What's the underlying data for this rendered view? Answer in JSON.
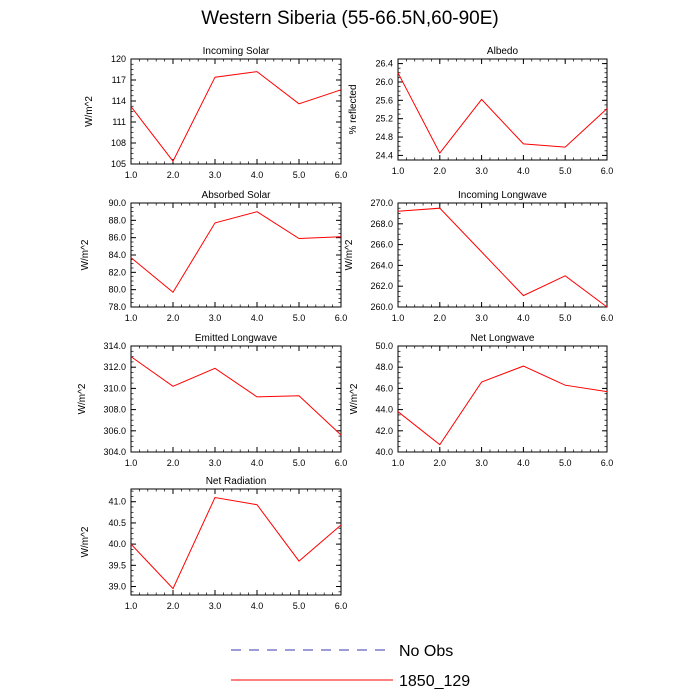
{
  "title": "Western Siberia (55-66.5N,60-90E)",
  "legend": [
    {
      "label": "No Obs",
      "color": "#3a3ab0",
      "dash": true
    },
    {
      "label": "1850_129",
      "color": "#ff0000",
      "dash": false
    }
  ],
  "chart_data": [
    {
      "type": "line",
      "title": "Incoming Solar",
      "ylabel": "W/m^2",
      "x": [
        1,
        2,
        3,
        4,
        5,
        6
      ],
      "xticks": [
        "1.0",
        "2.0",
        "3.0",
        "4.0",
        "5.0",
        "6.0"
      ],
      "ylim": [
        105,
        120
      ],
      "yticks": [
        105,
        108,
        111,
        114,
        117,
        120
      ],
      "yticklabels": [
        "105",
        "108",
        "111",
        "114",
        "117",
        "120"
      ],
      "series": [
        {
          "name": "1850_129",
          "color": "#ff0000",
          "values": [
            113.2,
            105.4,
            117.4,
            118.2,
            113.6,
            115.6
          ]
        }
      ]
    },
    {
      "type": "line",
      "title": "Albedo",
      "ylabel": "% reflected",
      "x": [
        1,
        2,
        3,
        4,
        5,
        6
      ],
      "xticks": [
        "1.0",
        "2.0",
        "3.0",
        "4.0",
        "5.0",
        "6.0"
      ],
      "ylim": [
        24.3,
        26.5
      ],
      "yticks": [
        24.4,
        24.8,
        25.2,
        25.6,
        26.0,
        26.4
      ],
      "yticklabels": [
        "24.4",
        "24.8",
        "25.2",
        "25.6",
        "26.0",
        "26.4"
      ],
      "series": [
        {
          "name": "1850_129",
          "color": "#ff0000",
          "values": [
            26.2,
            24.45,
            25.62,
            24.65,
            24.58,
            25.42
          ]
        }
      ]
    },
    {
      "type": "line",
      "title": "Absorbed Solar",
      "ylabel": "W/m^2",
      "x": [
        1,
        2,
        3,
        4,
        5,
        6
      ],
      "xticks": [
        "1.0",
        "2.0",
        "3.0",
        "4.0",
        "5.0",
        "6.0"
      ],
      "ylim": [
        78,
        90
      ],
      "yticks": [
        78,
        80,
        82,
        84,
        86,
        88,
        90
      ],
      "yticklabels": [
        "78.0",
        "80.0",
        "82.0",
        "84.0",
        "86.0",
        "88.0",
        "90.0"
      ],
      "series": [
        {
          "name": "1850_129",
          "color": "#ff0000",
          "values": [
            83.7,
            79.7,
            87.7,
            89.0,
            85.9,
            86.1
          ]
        }
      ]
    },
    {
      "type": "line",
      "title": "Incoming Longwave",
      "ylabel": "W/m^2",
      "x": [
        1,
        2,
        3,
        4,
        5,
        6
      ],
      "xticks": [
        "1.0",
        "2.0",
        "3.0",
        "4.0",
        "5.0",
        "6.0"
      ],
      "ylim": [
        260,
        270
      ],
      "yticks": [
        260,
        262,
        264,
        266,
        268,
        270
      ],
      "yticklabels": [
        "260.0",
        "262.0",
        "264.0",
        "266.0",
        "268.0",
        "270.0"
      ],
      "series": [
        {
          "name": "1850_129",
          "color": "#ff0000",
          "values": [
            269.2,
            269.5,
            265.3,
            261.1,
            263.0,
            260.0
          ]
        }
      ]
    },
    {
      "type": "line",
      "title": "Emitted Longwave",
      "ylabel": "W/m^2",
      "x": [
        1,
        2,
        3,
        4,
        5,
        6
      ],
      "xticks": [
        "1.0",
        "2.0",
        "3.0",
        "4.0",
        "5.0",
        "6.0"
      ],
      "ylim": [
        304,
        314
      ],
      "yticks": [
        304,
        306,
        308,
        310,
        312,
        314
      ],
      "yticklabels": [
        "304.0",
        "306.0",
        "308.0",
        "310.0",
        "312.0",
        "314.0"
      ],
      "series": [
        {
          "name": "1850_129",
          "color": "#ff0000",
          "values": [
            313.0,
            310.2,
            311.9,
            309.2,
            309.3,
            305.6
          ]
        }
      ]
    },
    {
      "type": "line",
      "title": "Net Longwave",
      "ylabel": "W/m^2",
      "x": [
        1,
        2,
        3,
        4,
        5,
        6
      ],
      "xticks": [
        "1.0",
        "2.0",
        "3.0",
        "4.0",
        "5.0",
        "6.0"
      ],
      "ylim": [
        40,
        50
      ],
      "yticks": [
        40,
        42,
        44,
        46,
        48,
        50
      ],
      "yticklabels": [
        "40.0",
        "42.0",
        "44.0",
        "46.0",
        "48.0",
        "50.0"
      ],
      "series": [
        {
          "name": "1850_129",
          "color": "#ff0000",
          "values": [
            43.8,
            40.7,
            46.6,
            48.1,
            46.3,
            45.7
          ]
        }
      ]
    },
    {
      "type": "line",
      "title": "Net Radiation",
      "ylabel": "W/m^2",
      "x": [
        1,
        2,
        3,
        4,
        5,
        6
      ],
      "xticks": [
        "1.0",
        "2.0",
        "3.0",
        "4.0",
        "5.0",
        "6.0"
      ],
      "ylim": [
        38.8,
        41.3
      ],
      "yticks": [
        39.0,
        39.5,
        40.0,
        40.5,
        41.0
      ],
      "yticklabels": [
        "39.0",
        "39.5",
        "40.0",
        "40.5",
        "41.0"
      ],
      "series": [
        {
          "name": "1850_129",
          "color": "#ff0000",
          "values": [
            40.0,
            38.95,
            41.1,
            40.93,
            39.6,
            40.45
          ]
        }
      ]
    }
  ]
}
